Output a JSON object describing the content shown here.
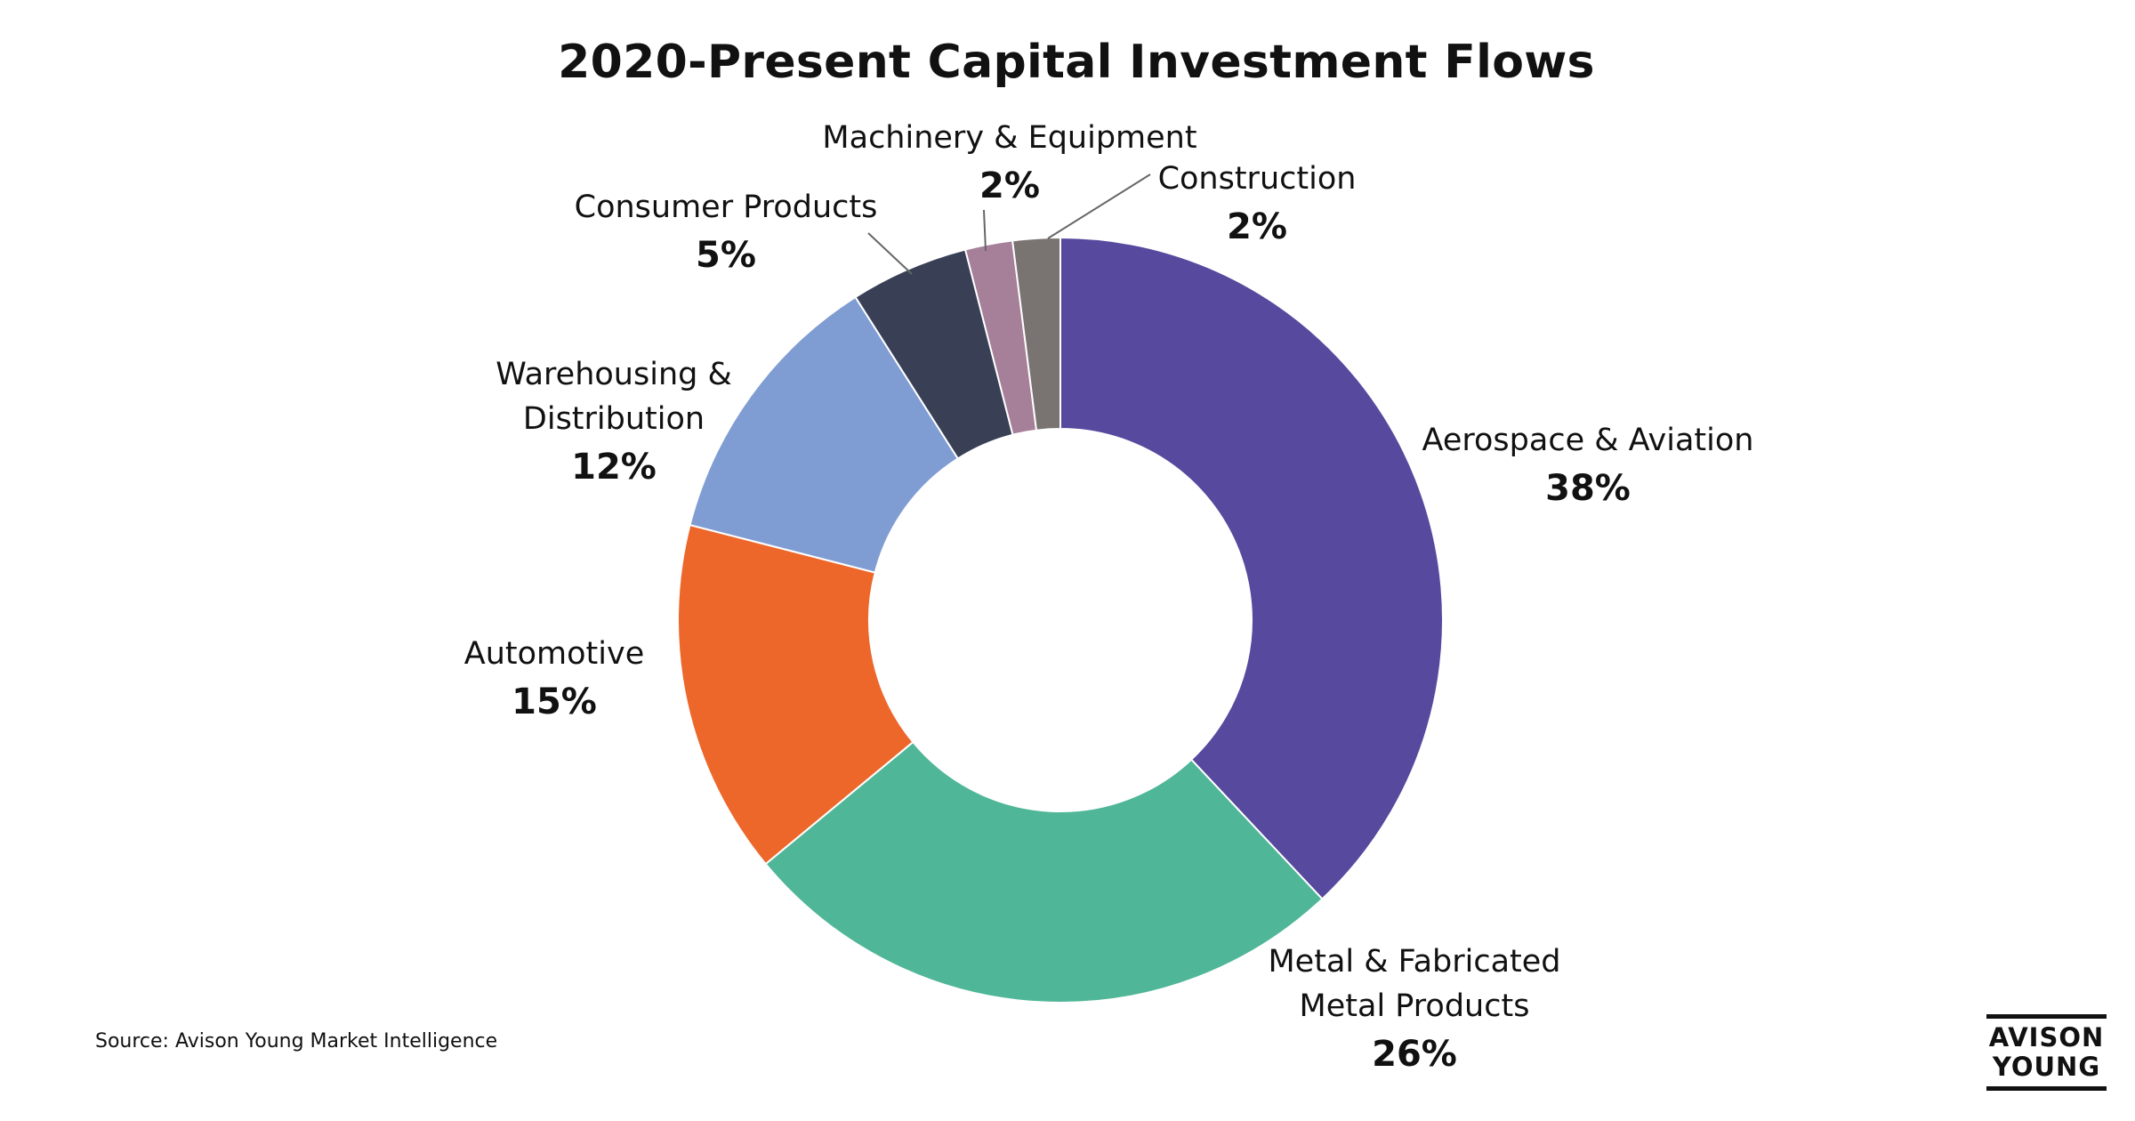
{
  "chart_data": {
    "type": "pie",
    "title": "2020-Present Capital Investment Flows",
    "donut": true,
    "start_angle_deg": 0,
    "direction": "clockwise",
    "slices": [
      {
        "label_lines": [
          "Aerospace & Aviation"
        ],
        "value": 38,
        "value_label": "38%",
        "color": "#56499e"
      },
      {
        "label_lines": [
          "Metal & Fabricated",
          "Metal Products"
        ],
        "value": 26,
        "value_label": "26%",
        "color": "#4fb697"
      },
      {
        "label_lines": [
          "Automotive"
        ],
        "value": 15,
        "value_label": "15%",
        "color": "#ed672b"
      },
      {
        "label_lines": [
          "Warehousing &",
          "Distribution"
        ],
        "value": 12,
        "value_label": "12%",
        "color": "#809dd3"
      },
      {
        "label_lines": [
          "Consumer Products"
        ],
        "value": 5,
        "value_label": "5%",
        "color": "#394056"
      },
      {
        "label_lines": [
          "Machinery & Equipment"
        ],
        "value": 2,
        "value_label": "2%",
        "color": "#a67f99"
      },
      {
        "label_lines": [
          "Construction"
        ],
        "value": 2,
        "value_label": "2%",
        "color": "#797371"
      }
    ]
  },
  "source": "Source: Avison Young Market Intelligence",
  "logo": {
    "line1": "AVISON",
    "line2": "YOUNG"
  }
}
